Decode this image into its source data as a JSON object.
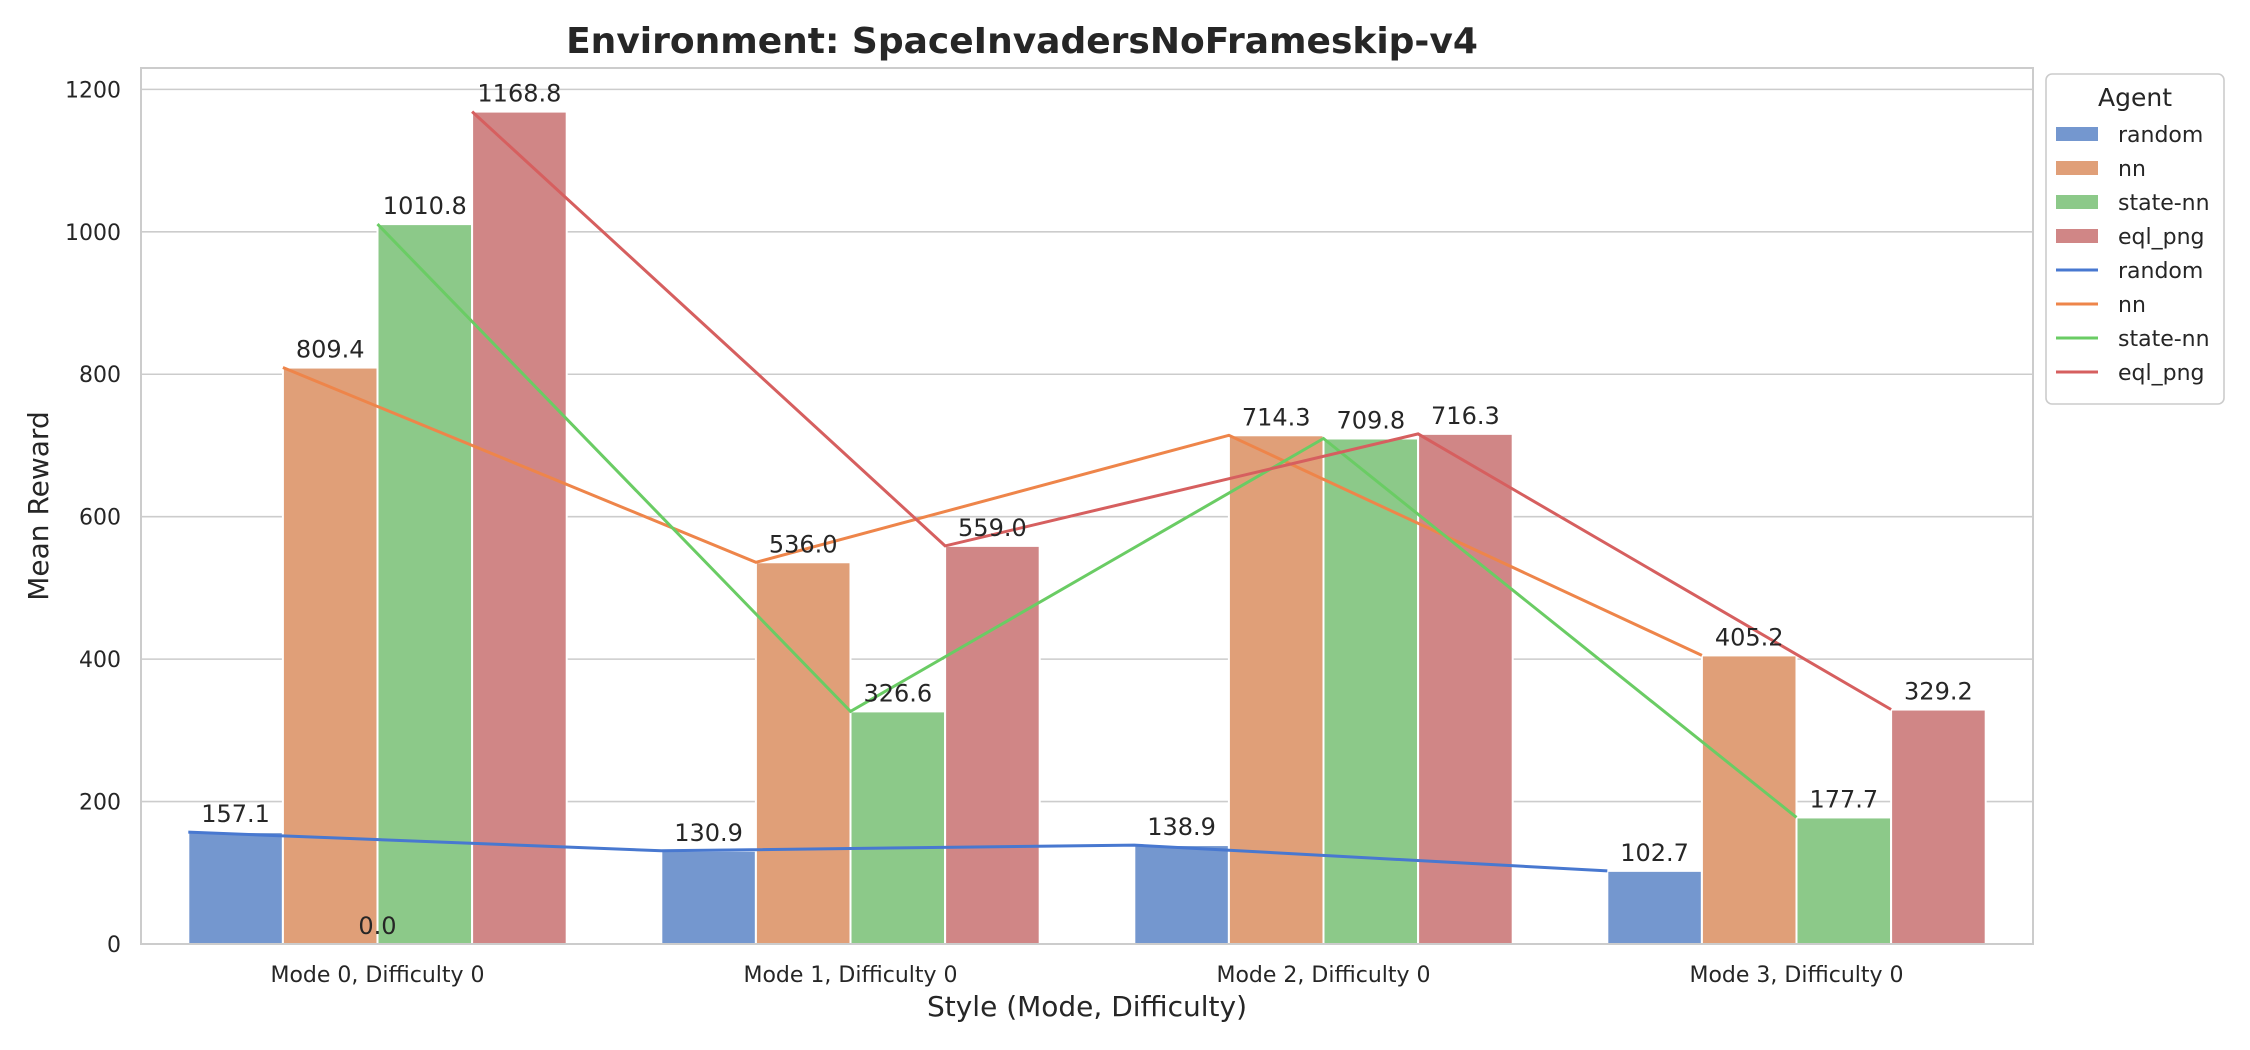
{
  "chart_data": {
    "type": "bar",
    "title": "Environment: SpaceInvadersNoFrameskip-v4",
    "xlabel": "Style (Mode, Difficulty)",
    "ylabel": "Mean Reward",
    "categories": [
      "Mode 0, Difficulty 0",
      "Mode 1, Difficulty 0",
      "Mode 2, Difficulty 0",
      "Mode 3, Difficulty 0"
    ],
    "ylim": [
      0,
      1230
    ],
    "yticks": [
      0,
      200,
      400,
      600,
      800,
      1000,
      1200
    ],
    "grid": true,
    "series": [
      {
        "name": "random",
        "color": "#7497cf",
        "line_color": "#4878d0",
        "values": [
          157.1,
          130.9,
          138.9,
          102.7
        ],
        "labels": [
          "157.1",
          "130.9",
          "138.9",
          "102.7"
        ]
      },
      {
        "name": "nn",
        "color": "#e09f78",
        "line_color": "#ee854a",
        "values": [
          809.4,
          536.0,
          714.3,
          405.2
        ],
        "labels": [
          "809.4",
          "536.0",
          "714.3",
          "405.2"
        ]
      },
      {
        "name": "state-nn",
        "color": "#8cc989",
        "line_color": "#6acc64",
        "values": [
          1010.8,
          326.6,
          709.8,
          177.7
        ],
        "labels": [
          "1010.8",
          "326.6",
          "709.8",
          "177.7"
        ]
      },
      {
        "name": "eql_png",
        "color": "#d08686",
        "line_color": "#d65f5f",
        "values": [
          1168.8,
          559.0,
          716.3,
          329.2
        ],
        "labels": [
          "1168.8",
          "559.0",
          "716.3",
          "329.2"
        ]
      }
    ],
    "lines": [
      {
        "name": "random",
        "color": "#4878d0",
        "values": [
          157.1,
          130.9,
          138.9,
          102.7
        ]
      },
      {
        "name": "nn",
        "color": "#ee854a",
        "values": [
          809.4,
          536.0,
          714.3,
          405.2
        ]
      },
      {
        "name": "state-nn",
        "color": "#6acc64",
        "values": [
          1010.8,
          326.6,
          709.8,
          177.7
        ]
      },
      {
        "name": "eql_png",
        "color": "#d65f5f",
        "values": [
          1168.8,
          559.0,
          716.3,
          329.2
        ]
      }
    ],
    "extra_annotations": [
      {
        "text": "0.0",
        "category_index": 0,
        "value": 0.0
      }
    ],
    "legend": {
      "title": "Agent",
      "placement": "outside-upper-right",
      "entries": [
        {
          "label": "random",
          "kind": "bar",
          "color": "#7497cf"
        },
        {
          "label": "nn",
          "kind": "bar",
          "color": "#e09f78"
        },
        {
          "label": "state-nn",
          "kind": "bar",
          "color": "#8cc989"
        },
        {
          "label": "eql_png",
          "kind": "bar",
          "color": "#d08686"
        },
        {
          "label": "random",
          "kind": "line",
          "color": "#4878d0"
        },
        {
          "label": "nn",
          "kind": "line",
          "color": "#ee854a"
        },
        {
          "label": "state-nn",
          "kind": "line",
          "color": "#6acc64"
        },
        {
          "label": "eql_png",
          "kind": "line",
          "color": "#d65f5f"
        }
      ]
    }
  }
}
